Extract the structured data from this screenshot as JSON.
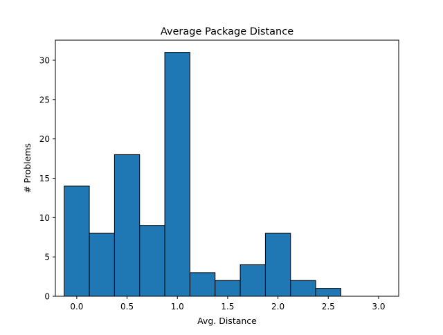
{
  "chart_data": {
    "type": "bar",
    "title": "Average Package Distance",
    "xlabel": "Avg. Distance",
    "ylabel": "# Problems",
    "xlim": [
      -0.2125,
      3.2
    ],
    "ylim": [
      0,
      32.55
    ],
    "xticks": [
      0.0,
      0.5,
      1.0,
      1.5,
      2.0,
      2.5,
      3.0
    ],
    "xtick_labels": [
      "0.0",
      "0.5",
      "1.0",
      "1.5",
      "2.0",
      "2.5",
      "3.0"
    ],
    "yticks": [
      0,
      5,
      10,
      15,
      20,
      25,
      30
    ],
    "ytick_labels": [
      "0",
      "5",
      "10",
      "15",
      "20",
      "25",
      "30"
    ],
    "bin_edges": [
      -0.125,
      0.125,
      0.375,
      0.625,
      0.875,
      1.125,
      1.375,
      1.625,
      1.875,
      2.125,
      2.375,
      2.625,
      2.875,
      3.125
    ],
    "values": [
      14,
      8,
      18,
      9,
      31,
      3,
      2,
      4,
      8,
      2,
      1,
      0,
      0
    ],
    "bar_color": "#1f77b4",
    "edge_color": "#000000",
    "grid": false,
    "legend": "none"
  }
}
